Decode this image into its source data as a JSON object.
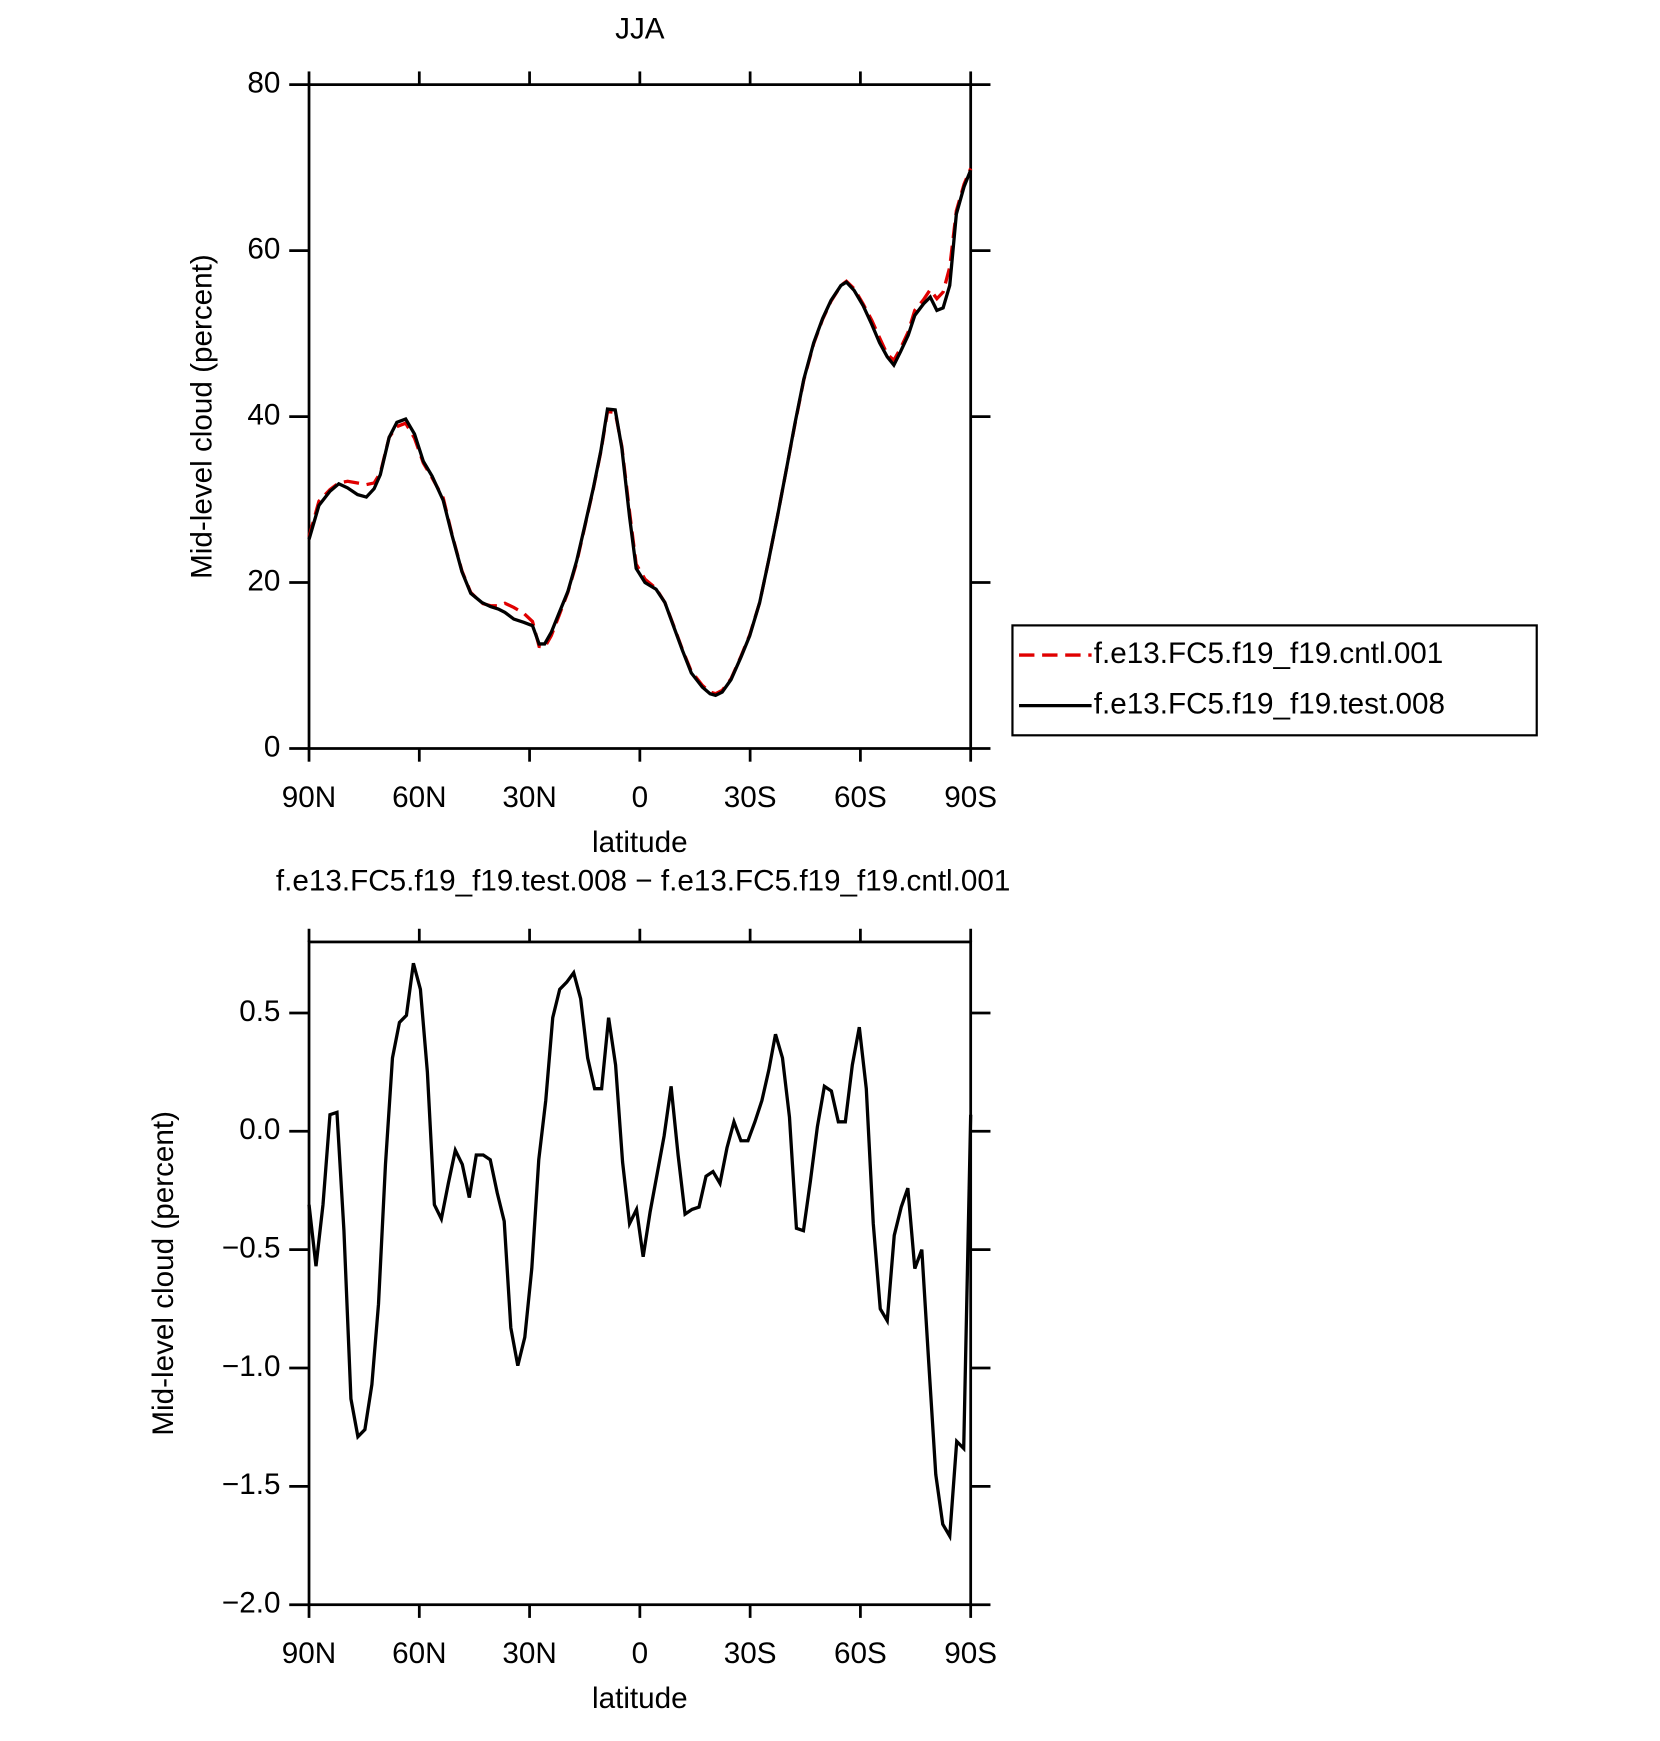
{
  "chart_data": [
    {
      "type": "line",
      "title": "JJA",
      "xlabel": "latitude",
      "ylabel": "Mid-level cloud (percent)",
      "xlim": [
        90,
        -90
      ],
      "xticks": [
        {
          "value": 90,
          "label": "90N"
        },
        {
          "value": 60,
          "label": "60N"
        },
        {
          "value": 30,
          "label": "30N"
        },
        0,
        {
          "value": -30,
          "label": "30S"
        },
        {
          "value": -60,
          "label": "60S"
        },
        {
          "value": -90,
          "label": "90S"
        }
      ],
      "ylim": [
        0,
        80
      ],
      "yticks": [
        0,
        20,
        40,
        60,
        80
      ],
      "legend": "right",
      "x": [
        90,
        87.3,
        84.3,
        81.9,
        79.5,
        76.8,
        74.4,
        72.3,
        70.6,
        68.2,
        66.1,
        63.7,
        61.3,
        58.9,
        56.5,
        53.5,
        51.1,
        48.4,
        46.0,
        43.0,
        40.6,
        38.5,
        36.7,
        34.3,
        31.6,
        29.2,
        27.4,
        25.9,
        24.1,
        22.0,
        19.6,
        17.2,
        15.1,
        12.7,
        10.6,
        8.8,
        6.7,
        4.9,
        2.8,
        1.0,
        -1.4,
        -4.4,
        -6.8,
        -9.2,
        -11.6,
        -14.0,
        -17.0,
        -19.1,
        -20.6,
        -22.4,
        -24.8,
        -27.5,
        -29.9,
        -32.6,
        -35.0,
        -37.4,
        -39.8,
        -42.2,
        -44.6,
        -47.3,
        -49.7,
        -52.0,
        -54.7,
        -56.2,
        -58.3,
        -60.7,
        -63.1,
        -65.2,
        -67.3,
        -69.1,
        -70.9,
        -73.0,
        -74.8,
        -77.2,
        -79.0,
        -80.8,
        -82.5,
        -84.3,
        -86.1,
        -88.2,
        -90
      ],
      "series": [
        {
          "name": "f.e13.FC5.f19_f19.cntl.001",
          "color": "#e00000",
          "linestyle": "dashed",
          "values": [
            25.5,
            29.8,
            31.2,
            32,
            32.2,
            32,
            31.8,
            32,
            33.2,
            37.5,
            38.8,
            39.2,
            37.4,
            34.4,
            32.6,
            30.2,
            25.8,
            21.4,
            18.8,
            17.5,
            17.2,
            17.2,
            17.5,
            17,
            16.3,
            15.3,
            12.3,
            12.2,
            13.6,
            16,
            18.8,
            22.4,
            26.5,
            31.2,
            35.8,
            40.6,
            40.5,
            36.4,
            28.5,
            22.2,
            20.4,
            19.3,
            17.6,
            14.8,
            11.9,
            9.3,
            7.6,
            6.8,
            6.6,
            7,
            8.4,
            11.1,
            13.7,
            17.6,
            22.6,
            27.9,
            33.5,
            39.1,
            44.4,
            48.8,
            51.7,
            53.9,
            55.8,
            56.3,
            55.4,
            53.6,
            51.6,
            49.5,
            47.5,
            46.8,
            48.2,
            50.2,
            52.8,
            54.1,
            55.3,
            54.2,
            55,
            58,
            64.8,
            68,
            69.9
          ]
        },
        {
          "name": "f.e13.FC5.f19_f19.test.008",
          "color": "#000000",
          "linestyle": "solid",
          "values": [
            25.2,
            29.3,
            31,
            31.9,
            31.4,
            30.6,
            30.3,
            31.3,
            33,
            37.5,
            39.3,
            39.7,
            37.9,
            34.6,
            32.8,
            29.9,
            25.7,
            21.3,
            18.7,
            17.6,
            17.1,
            16.8,
            16.4,
            15.6,
            15.2,
            14.8,
            12.6,
            12.6,
            14,
            16.3,
            18.9,
            22.6,
            26.6,
            31.3,
            35.9,
            40.9,
            40.8,
            36.2,
            27.9,
            21.7,
            20,
            19.2,
            17.6,
            14.7,
            11.8,
            9.1,
            7.4,
            6.6,
            6.4,
            6.8,
            8.3,
            11,
            13.6,
            17.6,
            22.6,
            27.9,
            33.5,
            39.2,
            44.5,
            48.9,
            51.8,
            54,
            55.8,
            56.2,
            55.2,
            53.4,
            51.1,
            48.9,
            47.2,
            46.2,
            47.8,
            49.8,
            52.2,
            53.6,
            54.4,
            52.8,
            53.1,
            55.8,
            64.4,
            67.7,
            69.7
          ]
        }
      ]
    },
    {
      "type": "line",
      "title": "f.e13.FC5.f19_f19.test.008 − f.e13.FC5.f19_f19.cntl.001",
      "xlabel": "latitude",
      "ylabel": "Mid-level cloud (percent)",
      "xlim": [
        90,
        -90
      ],
      "xticks": [
        {
          "value": 90,
          "label": "90N"
        },
        {
          "value": 60,
          "label": "60N"
        },
        {
          "value": 30,
          "label": "30N"
        },
        0,
        {
          "value": -30,
          "label": "30S"
        },
        {
          "value": -60,
          "label": "60S"
        },
        {
          "value": -90,
          "label": "90S"
        }
      ],
      "ylim": [
        -2.0,
        0.8
      ],
      "yticks": [
        {
          "value": -2.0,
          "label": "−2.0"
        },
        {
          "value": -1.5,
          "label": "−1.5"
        },
        {
          "value": -1.0,
          "label": "−1.0"
        },
        {
          "value": -0.5,
          "label": "−0.5"
        },
        {
          "value": 0.0,
          "label": "0.0"
        },
        0.5
      ],
      "x": [
        90,
        88.1,
        86.2,
        84.3,
        82.4,
        80.5,
        78.6,
        76.7,
        74.8,
        72.9,
        71.1,
        69.2,
        67.3,
        65.4,
        63.5,
        61.6,
        59.7,
        57.8,
        55.9,
        54.0,
        52.1,
        50.2,
        48.3,
        46.4,
        44.5,
        42.6,
        40.7,
        38.8,
        36.9,
        35.1,
        33.2,
        31.3,
        29.4,
        27.5,
        25.6,
        23.7,
        21.8,
        19.9,
        18.0,
        16.1,
        14.2,
        12.3,
        10.4,
        8.5,
        6.6,
        4.7,
        2.8,
        0.9,
        -0.9,
        -2.8,
        -4.7,
        -6.6,
        -8.5,
        -10.4,
        -12.3,
        -14.2,
        -16.1,
        -18.0,
        -19.9,
        -21.8,
        -23.7,
        -25.6,
        -27.5,
        -29.4,
        -31.3,
        -33.2,
        -35.1,
        -36.9,
        -38.8,
        -40.7,
        -42.6,
        -44.5,
        -46.4,
        -48.3,
        -50.2,
        -52.1,
        -54.0,
        -55.9,
        -57.8,
        -59.7,
        -61.6,
        -63.5,
        -65.4,
        -67.3,
        -69.2,
        -71.1,
        -72.9,
        -74.8,
        -76.7,
        -78.6,
        -80.5,
        -82.4,
        -84.3,
        -86.2,
        -88.1,
        -90
      ],
      "series": [
        {
          "color": "#000000",
          "linestyle": "solid",
          "values": [
            -0.31,
            -0.57,
            -0.31,
            0.07,
            0.08,
            -0.42,
            -1.13,
            -1.29,
            -1.26,
            -1.07,
            -0.73,
            -0.14,
            0.31,
            0.46,
            0.49,
            0.71,
            0.6,
            0.25,
            -0.31,
            -0.37,
            -0.22,
            -0.08,
            -0.14,
            -0.28,
            -0.1,
            -0.1,
            -0.12,
            -0.26,
            -0.38,
            -0.83,
            -0.99,
            -0.87,
            -0.58,
            -0.12,
            0.13,
            0.48,
            0.6,
            0.63,
            0.67,
            0.56,
            0.31,
            0.18,
            0.18,
            0.48,
            0.28,
            -0.13,
            -0.39,
            -0.33,
            -0.53,
            -0.34,
            -0.18,
            -0.02,
            0.19,
            -0.1,
            -0.35,
            -0.33,
            -0.32,
            -0.19,
            -0.17,
            -0.22,
            -0.07,
            0.04,
            -0.04,
            -0.04,
            0.04,
            0.13,
            0.26,
            0.41,
            0.31,
            0.06,
            -0.41,
            -0.42,
            -0.21,
            0.02,
            0.19,
            0.17,
            0.04,
            0.04,
            0.28,
            0.44,
            0.18,
            -0.39,
            -0.75,
            -0.8,
            -0.44,
            -0.32,
            -0.24,
            -0.58,
            -0.5,
            -0.98,
            -1.45,
            -1.66,
            -1.71,
            -1.31,
            -1.34,
            0.07
          ]
        }
      ]
    }
  ]
}
